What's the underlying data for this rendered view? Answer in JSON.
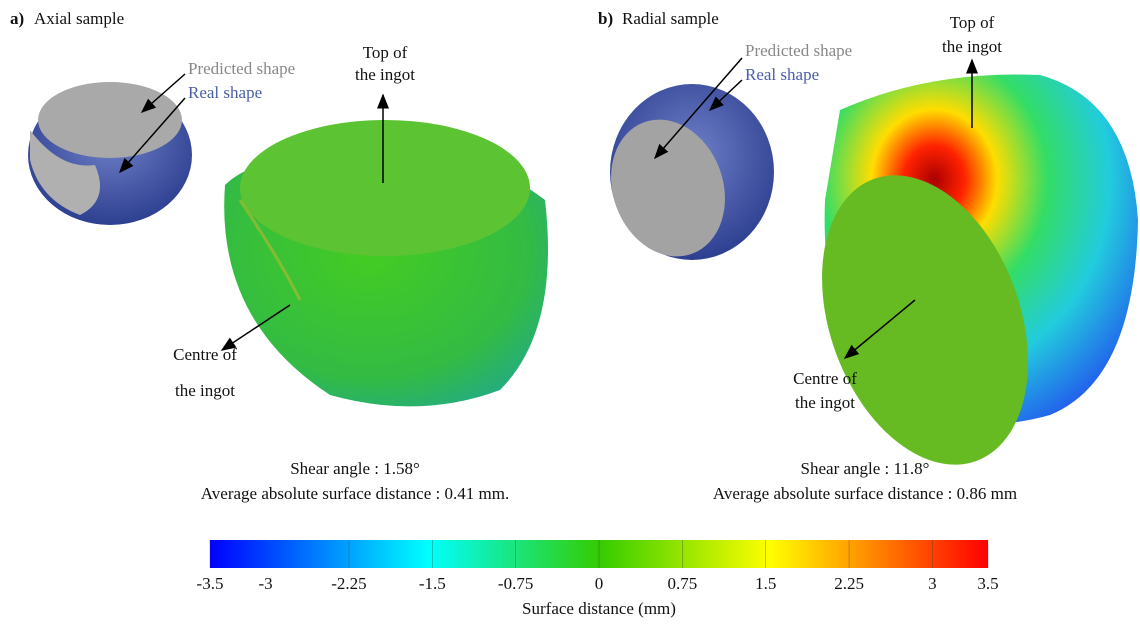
{
  "panels": [
    {
      "label": "a)",
      "title": "Axial sample",
      "legend": [
        "Predicted shape",
        "Real shape"
      ],
      "top_label": [
        "Top of",
        "the ingot"
      ],
      "centre_label": [
        "Centre of",
        "the ingot"
      ],
      "stats": [
        "Shear angle : 1.58°",
        "Average absolute surface distance : 0.41 mm."
      ]
    },
    {
      "label": "b)",
      "title": "Radial sample",
      "legend": [
        "Predicted shape",
        "Real shape"
      ],
      "top_label": [
        "Top of",
        "the ingot"
      ],
      "centre_label": [
        "Centre of",
        "the ingot"
      ],
      "stats": [
        "Shear angle : 11.8°",
        "Average absolute surface distance : 0.86 mm"
      ]
    }
  ],
  "colorbar": {
    "label": "Surface distance (mm)",
    "range": [
      -3.5,
      3.5
    ],
    "ticks": [
      -3.5,
      -3,
      -2.25,
      -1.5,
      -0.75,
      0,
      0.75,
      1.5,
      2.25,
      3,
      3.5
    ]
  }
}
